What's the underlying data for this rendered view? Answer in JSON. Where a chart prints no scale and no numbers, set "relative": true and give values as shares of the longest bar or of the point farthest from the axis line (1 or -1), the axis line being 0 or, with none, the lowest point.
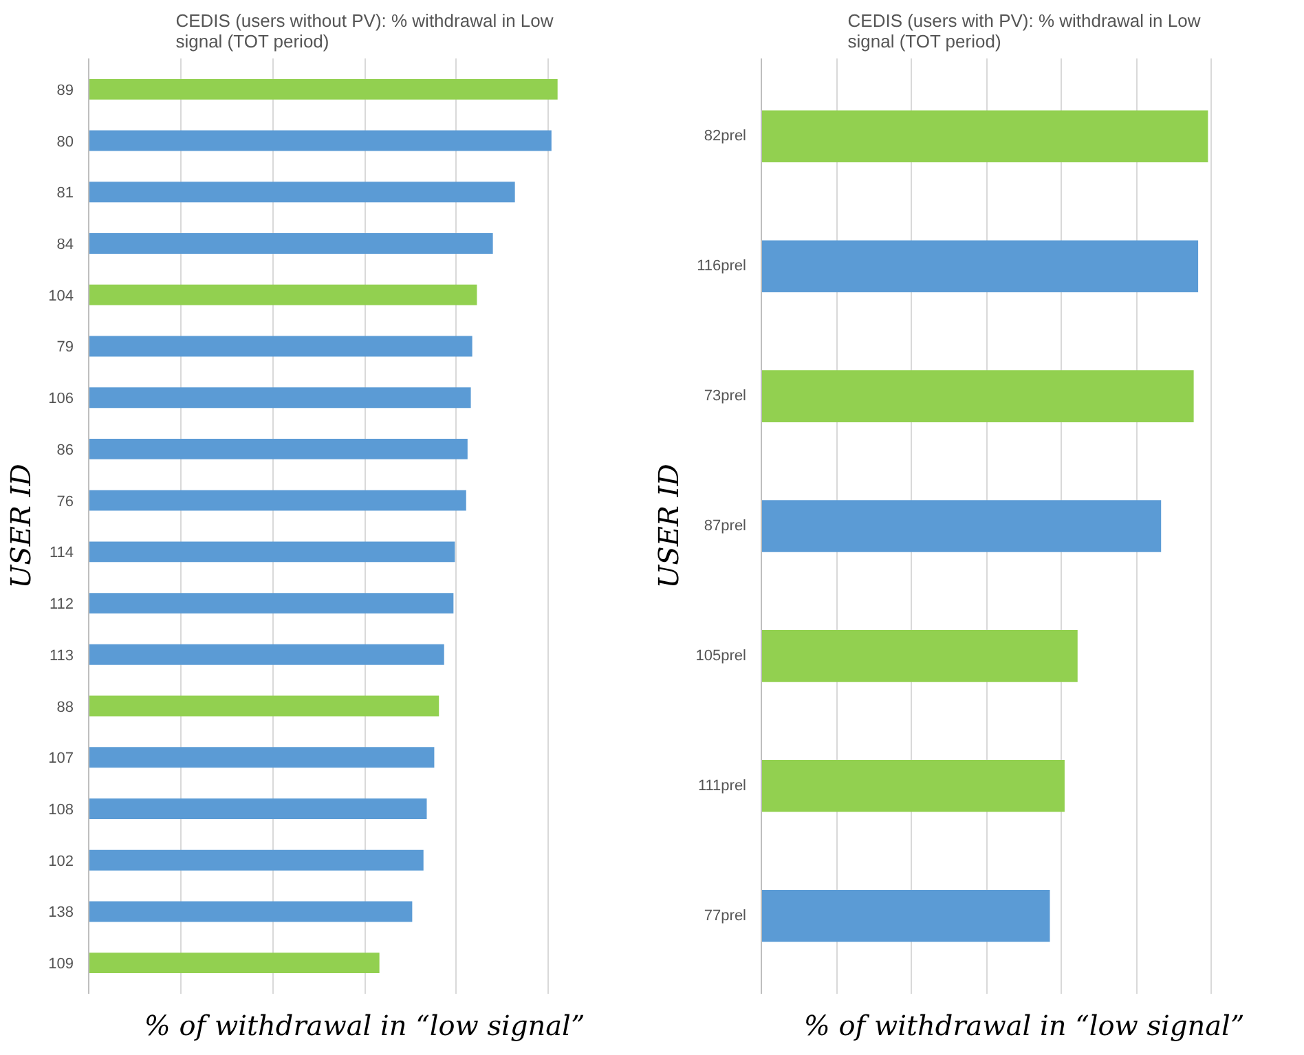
{
  "chart_data": [
    {
      "type": "bar",
      "orientation": "horizontal",
      "relative": true,
      "grid": "x",
      "title": "CEDIS (users without PV): % withdrawal in Low signal (TOT period)",
      "xlabel": "% of withdrawal in “low signal”",
      "ylabel": "USER ID",
      "categories": [
        "89",
        "80",
        "81",
        "84",
        "104",
        "79",
        "106",
        "86",
        "76",
        "114",
        "112",
        "113",
        "88",
        "107",
        "108",
        "102",
        "138",
        "109"
      ],
      "values": [
        1,
        0.987,
        0.909,
        0.862,
        0.828,
        0.818,
        0.815,
        0.808,
        0.805,
        0.781,
        0.778,
        0.758,
        0.747,
        0.737,
        0.721,
        0.714,
        0.69,
        0.62
      ],
      "colors": [
        "#92d050",
        "#5b9bd5",
        "#5b9bd5",
        "#5b9bd5",
        "#92d050",
        "#5b9bd5",
        "#5b9bd5",
        "#5b9bd5",
        "#5b9bd5",
        "#5b9bd5",
        "#5b9bd5",
        "#5b9bd5",
        "#92d050",
        "#5b9bd5",
        "#5b9bd5",
        "#5b9bd5",
        "#5b9bd5",
        "#92d050"
      ]
    },
    {
      "type": "bar",
      "orientation": "horizontal",
      "relative": true,
      "grid": "x",
      "title": "CEDIS (users with PV): % withdrawal in Low signal (TOT period)",
      "xlabel": "% of withdrawal in “low signal”",
      "ylabel": "USER ID",
      "categories": [
        "82prel",
        "116prel",
        "73prel",
        "87prel",
        "105prel",
        "111prel",
        "77prel"
      ],
      "values": [
        1,
        0.978,
        0.968,
        0.895,
        0.708,
        0.679,
        0.646
      ],
      "colors": [
        "#92d050",
        "#5b9bd5",
        "#92d050",
        "#5b9bd5",
        "#92d050",
        "#92d050",
        "#5b9bd5"
      ]
    }
  ]
}
